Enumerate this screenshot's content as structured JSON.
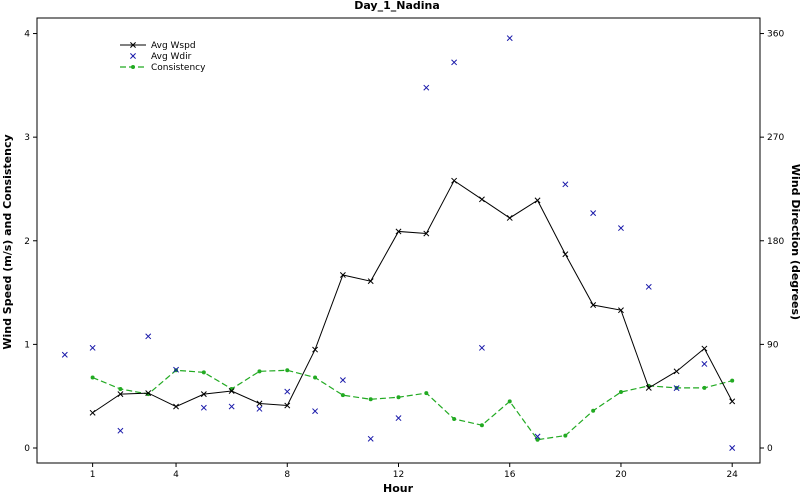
{
  "chart_data": {
    "type": "line",
    "title": "Day_1_Nadina",
    "xlabel": "Hour",
    "ylabel_left": "Wind Speed (m/s) and Consistency",
    "ylabel_right": "Wind Direction (degrees)",
    "xlim": [
      -1,
      25
    ],
    "ylim_left": [
      0,
      4.15
    ],
    "ylim_right": [
      0,
      373.5
    ],
    "x_ticks": [
      1,
      4,
      8,
      12,
      16,
      20,
      24
    ],
    "y_ticks_left": [
      0,
      1,
      2,
      3,
      4
    ],
    "y_ticks_right": [
      0,
      90,
      180,
      270,
      360
    ],
    "grid": false,
    "legend_position": "top-left",
    "series": [
      {
        "name": "Avg Wspd",
        "axis": "left",
        "style": "solid line with x markers",
        "color": "#000000",
        "x": [
          1,
          2,
          3,
          4,
          5,
          6,
          7,
          8,
          9,
          10,
          11,
          12,
          13,
          14,
          15,
          16,
          17,
          18,
          19,
          20,
          21,
          22,
          23,
          24
        ],
        "y": [
          0.34,
          0.52,
          0.53,
          0.4,
          0.52,
          0.55,
          0.43,
          0.41,
          0.95,
          1.67,
          1.61,
          2.09,
          2.07,
          2.58,
          2.4,
          2.22,
          2.39,
          1.87,
          1.38,
          1.33,
          0.58,
          0.74,
          0.96,
          0.45
        ]
      },
      {
        "name": "Avg Wdir",
        "axis": "right",
        "style": "x markers only",
        "color": "#1a1aaa",
        "x": [
          0,
          1,
          2,
          3,
          4,
          5,
          6,
          7,
          8,
          9,
          10,
          11,
          12,
          13,
          14,
          15,
          16,
          17,
          18,
          19,
          20,
          21,
          22,
          23,
          24
        ],
        "y": [
          81,
          87,
          15,
          97,
          68,
          35,
          36,
          34,
          49,
          32,
          59,
          8,
          26,
          313,
          335,
          87,
          356,
          10,
          229,
          204,
          191,
          140,
          52,
          73,
          0
        ]
      },
      {
        "name": "Consistency",
        "axis": "left",
        "style": "dashed line with dot markers",
        "color": "#22aa22",
        "x": [
          1,
          2,
          3,
          4,
          5,
          6,
          7,
          8,
          9,
          10,
          11,
          12,
          13,
          14,
          15,
          16,
          17,
          18,
          19,
          20,
          21,
          22,
          23,
          24
        ],
        "y": [
          0.68,
          0.57,
          0.52,
          0.75,
          0.73,
          0.57,
          0.74,
          0.75,
          0.68,
          0.51,
          0.47,
          0.49,
          0.53,
          0.28,
          0.22,
          0.45,
          0.08,
          0.12,
          0.36,
          0.54,
          0.6,
          0.58,
          0.58,
          0.65
        ]
      }
    ]
  }
}
